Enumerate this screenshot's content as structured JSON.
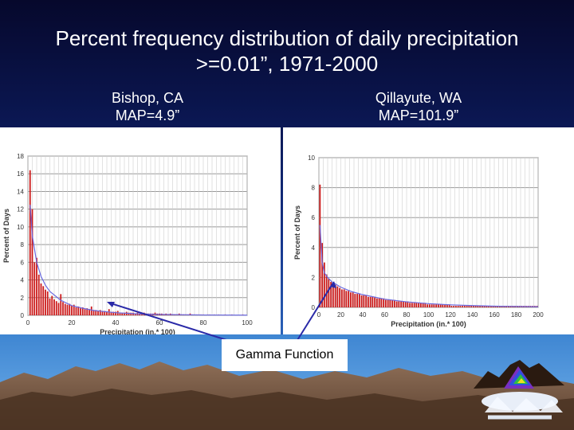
{
  "slide": {
    "title_line1": "Percent frequency distribution of daily precipitation",
    "title_line2": ">=0.01”, 1971-2000",
    "left_station": {
      "name": "Bishop, CA",
      "map": "MAP=4.9”"
    },
    "right_station": {
      "name": "Qillayute, WA",
      "map": "MAP=101.9”"
    },
    "callout": "Gamma Function"
  },
  "colors": {
    "bar": "#cc1b1b",
    "gamma": "#6a6ae0",
    "grid": "#999999",
    "arrow": "#2a2aa8"
  },
  "chart_data": [
    {
      "type": "bar",
      "title": "",
      "xlabel": "Precipitation (in.* 100)",
      "ylabel": "Percent of Days",
      "xlim": [
        0,
        100
      ],
      "ylim": [
        0,
        18
      ],
      "xticks": [
        "0",
        "20",
        "40",
        "60",
        "80",
        "100"
      ],
      "yticks": [
        "0",
        "2",
        "4",
        "6",
        "8",
        "10",
        "12",
        "14",
        "16",
        "18"
      ],
      "grid": true,
      "x": [
        1,
        2,
        3,
        4,
        5,
        6,
        7,
        8,
        9,
        10,
        11,
        12,
        13,
        14,
        15,
        16,
        17,
        18,
        19,
        20,
        21,
        22,
        23,
        24,
        25,
        26,
        27,
        28,
        29,
        30,
        31,
        32,
        33,
        34,
        35,
        36,
        37,
        38,
        39,
        40,
        41,
        42,
        43,
        44,
        45,
        46,
        47,
        48,
        49,
        50,
        51,
        52,
        53,
        54,
        55,
        56,
        57,
        58,
        59,
        60,
        61,
        62,
        63,
        64,
        65,
        66,
        67,
        68,
        69,
        70,
        71,
        72,
        73,
        74,
        75,
        76,
        77,
        78,
        79,
        80,
        81,
        82,
        83,
        84,
        85,
        86,
        87,
        88,
        89,
        90,
        91,
        92,
        93,
        94,
        95,
        96,
        97,
        98,
        99,
        100
      ],
      "values": [
        16.4,
        12.0,
        6.0,
        6.5,
        4.6,
        3.6,
        3.3,
        2.9,
        2.7,
        1.9,
        2.2,
        1.8,
        1.6,
        1.4,
        2.4,
        1.5,
        1.3,
        1.2,
        1.3,
        1.1,
        1.2,
        0.9,
        1.0,
        0.8,
        0.9,
        0.7,
        0.8,
        0.7,
        1.0,
        0.6,
        0.6,
        0.5,
        0.6,
        0.5,
        0.5,
        0.4,
        0.7,
        0.4,
        0.4,
        0.4,
        0.5,
        0.3,
        0.3,
        0.3,
        0.4,
        0.3,
        0.3,
        0.3,
        0.2,
        0.3,
        0.2,
        0.2,
        0.3,
        0.2,
        0.2,
        0.2,
        0.2,
        0.3,
        0.2,
        0.2,
        0.2,
        0.1,
        0.2,
        0.1,
        0.2,
        0.1,
        0.1,
        0.1,
        0.2,
        0.1,
        0.1,
        0.1,
        0.1,
        0.2,
        0.1,
        0.1,
        0.1,
        0.1,
        0.1,
        0.1,
        0,
        0.1,
        0.1,
        0,
        0.1,
        0,
        0.1,
        0,
        0,
        0.1,
        0,
        0,
        0.1,
        0,
        0,
        0,
        0,
        0.1,
        0,
        0
      ],
      "gamma": [
        [
          1,
          12.5
        ],
        [
          2,
          9.0
        ],
        [
          4,
          6.0
        ],
        [
          6,
          4.4
        ],
        [
          8,
          3.4
        ],
        [
          10,
          2.7
        ],
        [
          15,
          1.7
        ],
        [
          20,
          1.1
        ],
        [
          25,
          0.8
        ],
        [
          30,
          0.55
        ],
        [
          40,
          0.3
        ],
        [
          50,
          0.17
        ],
        [
          60,
          0.1
        ],
        [
          80,
          0.04
        ],
        [
          100,
          0.02
        ]
      ]
    },
    {
      "type": "bar",
      "title": "",
      "xlabel": "Precipitation (in.* 100)",
      "ylabel": "Percent of Days",
      "xlim": [
        0,
        200
      ],
      "ylim": [
        0,
        10
      ],
      "xticks": [
        "0",
        "20",
        "40",
        "60",
        "80",
        "100",
        "120",
        "140",
        "160",
        "180",
        "200"
      ],
      "yticks": [
        "0",
        "2",
        "4",
        "6",
        "8",
        "10"
      ],
      "grid": true,
      "x": [
        1,
        3,
        5,
        7,
        9,
        11,
        13,
        15,
        17,
        19,
        21,
        23,
        25,
        27,
        29,
        31,
        33,
        35,
        37,
        39,
        41,
        43,
        45,
        47,
        49,
        51,
        53,
        55,
        57,
        59,
        61,
        63,
        65,
        67,
        69,
        71,
        73,
        75,
        77,
        79,
        81,
        83,
        85,
        87,
        89,
        91,
        93,
        95,
        97,
        99,
        101,
        103,
        105,
        107,
        109,
        111,
        113,
        115,
        117,
        119,
        121,
        123,
        125,
        127,
        129,
        131,
        133,
        135,
        137,
        139,
        141,
        143,
        145,
        147,
        149,
        151,
        153,
        155,
        157,
        159,
        161,
        163,
        165,
        167,
        169,
        171,
        173,
        175,
        177,
        179,
        181,
        183,
        185,
        187,
        189,
        191,
        193,
        195,
        197,
        199
      ],
      "values": [
        8.2,
        4.3,
        3.0,
        2.2,
        1.9,
        1.7,
        1.6,
        1.5,
        1.4,
        1.3,
        1.2,
        1.2,
        1.1,
        1.1,
        1.0,
        1.0,
        0.9,
        0.9,
        0.9,
        0.8,
        0.8,
        0.8,
        0.7,
        0.7,
        0.7,
        0.7,
        0.6,
        0.6,
        0.6,
        0.6,
        0.5,
        0.5,
        0.5,
        0.5,
        0.5,
        0.4,
        0.4,
        0.4,
        0.4,
        0.4,
        0.4,
        0.3,
        0.3,
        0.3,
        0.3,
        0.3,
        0.3,
        0.3,
        0.3,
        0.2,
        0.2,
        0.2,
        0.2,
        0.2,
        0.2,
        0.2,
        0.2,
        0.2,
        0.2,
        0.2,
        0.1,
        0.1,
        0.1,
        0.1,
        0.1,
        0.1,
        0.1,
        0.1,
        0.1,
        0.1,
        0.1,
        0.1,
        0.1,
        0.1,
        0.1,
        0.1,
        0.1,
        0.1,
        0.1,
        0.1,
        0.1,
        0.1,
        0.1,
        0.1,
        0.1,
        0.1,
        0.1,
        0.1,
        0.1,
        0.1,
        0.1,
        0.1,
        0.1,
        0.1,
        0.1,
        0.1,
        0.1,
        0.1,
        0.1,
        0.1
      ],
      "gamma": [
        [
          1,
          5.5
        ],
        [
          3,
          3.0
        ],
        [
          5,
          2.3
        ],
        [
          8,
          2.0
        ],
        [
          12,
          1.7
        ],
        [
          20,
          1.35
        ],
        [
          30,
          1.05
        ],
        [
          40,
          0.85
        ],
        [
          60,
          0.55
        ],
        [
          80,
          0.37
        ],
        [
          100,
          0.25
        ],
        [
          120,
          0.17
        ],
        [
          140,
          0.12
        ],
        [
          160,
          0.08
        ],
        [
          180,
          0.06
        ],
        [
          200,
          0.04
        ]
      ]
    }
  ]
}
